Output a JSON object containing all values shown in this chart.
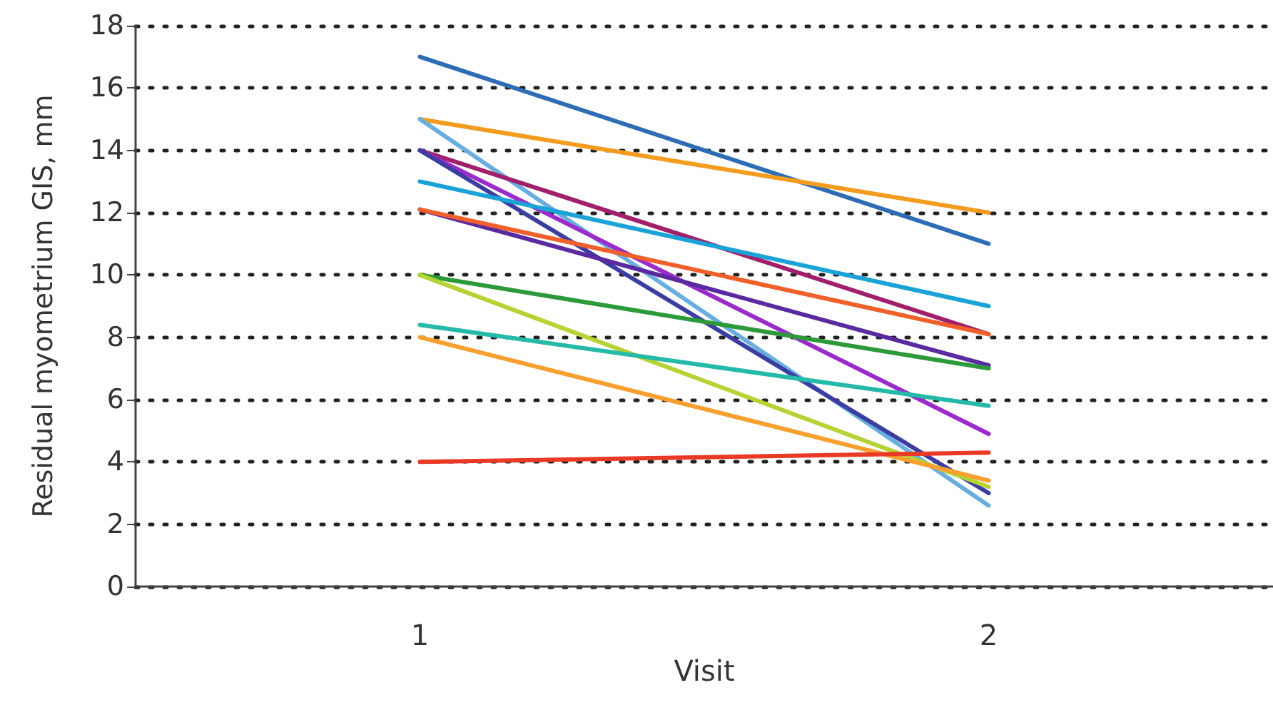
{
  "chart_data": {
    "type": "line",
    "xlabel": "Visit",
    "ylabel": "Residual myometrium GIS, mm",
    "categories": [
      "1",
      "2"
    ],
    "series": [
      {
        "color": "#2e6db5",
        "values": [
          17,
          11
        ]
      },
      {
        "color": "#f39c1f",
        "values": [
          15,
          12
        ]
      },
      {
        "color": "#6aaee0",
        "values": [
          15,
          2.6
        ]
      },
      {
        "color": "#a0206b",
        "values": [
          14,
          8.1
        ]
      },
      {
        "color": "#9b2ccc",
        "values": [
          14,
          4.9
        ]
      },
      {
        "color": "#3b3ea0",
        "values": [
          14,
          3
        ]
      },
      {
        "color": "#1ba3d8",
        "values": [
          13,
          9
        ]
      },
      {
        "color": "#5a2aa0",
        "values": [
          12.1,
          7.1
        ]
      },
      {
        "color": "#f0602a",
        "values": [
          12.1,
          8.1
        ]
      },
      {
        "color": "#2c9a3a",
        "values": [
          10,
          7
        ]
      },
      {
        "color": "#b5d334",
        "values": [
          10,
          3.2
        ]
      },
      {
        "color": "#25b9a8",
        "values": [
          8.4,
          5.8
        ]
      },
      {
        "color": "#f7a030",
        "values": [
          8,
          3.4
        ]
      },
      {
        "color": "#e83a24",
        "values": [
          4,
          4.3
        ]
      }
    ],
    "ylim": [
      0,
      18
    ],
    "yticks": [
      0,
      2,
      4,
      6,
      8,
      10,
      12,
      14,
      16,
      18
    ],
    "grid": "y",
    "marker": "none",
    "line_style": "solid"
  }
}
